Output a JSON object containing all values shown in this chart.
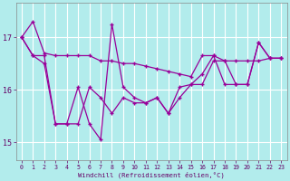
{
  "xlabel": "Windchill (Refroidissement éolien,°C)",
  "bg_color": "#b2ecec",
  "grid_color": "#ffffff",
  "line_color": "#990099",
  "x": [
    0,
    1,
    2,
    3,
    4,
    5,
    6,
    7,
    8,
    9,
    10,
    11,
    12,
    13,
    14,
    15,
    16,
    17,
    18,
    19,
    20,
    21,
    22,
    23
  ],
  "series1": [
    17.0,
    17.3,
    16.7,
    16.65,
    16.65,
    16.65,
    16.65,
    16.55,
    16.55,
    16.5,
    16.5,
    16.45,
    16.4,
    16.35,
    16.3,
    16.25,
    16.65,
    16.65,
    16.55,
    16.55,
    16.55,
    16.55,
    16.6,
    16.6
  ],
  "series2": [
    17.0,
    16.65,
    16.65,
    15.35,
    15.35,
    16.05,
    15.35,
    15.05,
    17.25,
    16.05,
    15.85,
    15.75,
    15.85,
    15.55,
    16.05,
    16.1,
    16.3,
    16.65,
    16.1,
    16.1,
    16.1,
    16.9,
    16.6,
    16.6
  ],
  "series3": [
    17.0,
    16.65,
    16.5,
    15.35,
    15.35,
    15.35,
    16.05,
    15.85,
    15.55,
    15.85,
    15.75,
    15.75,
    15.85,
    15.55,
    15.85,
    16.1,
    16.1,
    16.55,
    16.55,
    16.1,
    16.1,
    16.9,
    16.6,
    16.6
  ],
  "yticks": [
    15,
    16,
    17
  ],
  "ylim": [
    14.65,
    17.65
  ],
  "xlim": [
    -0.5,
    23.5
  ]
}
